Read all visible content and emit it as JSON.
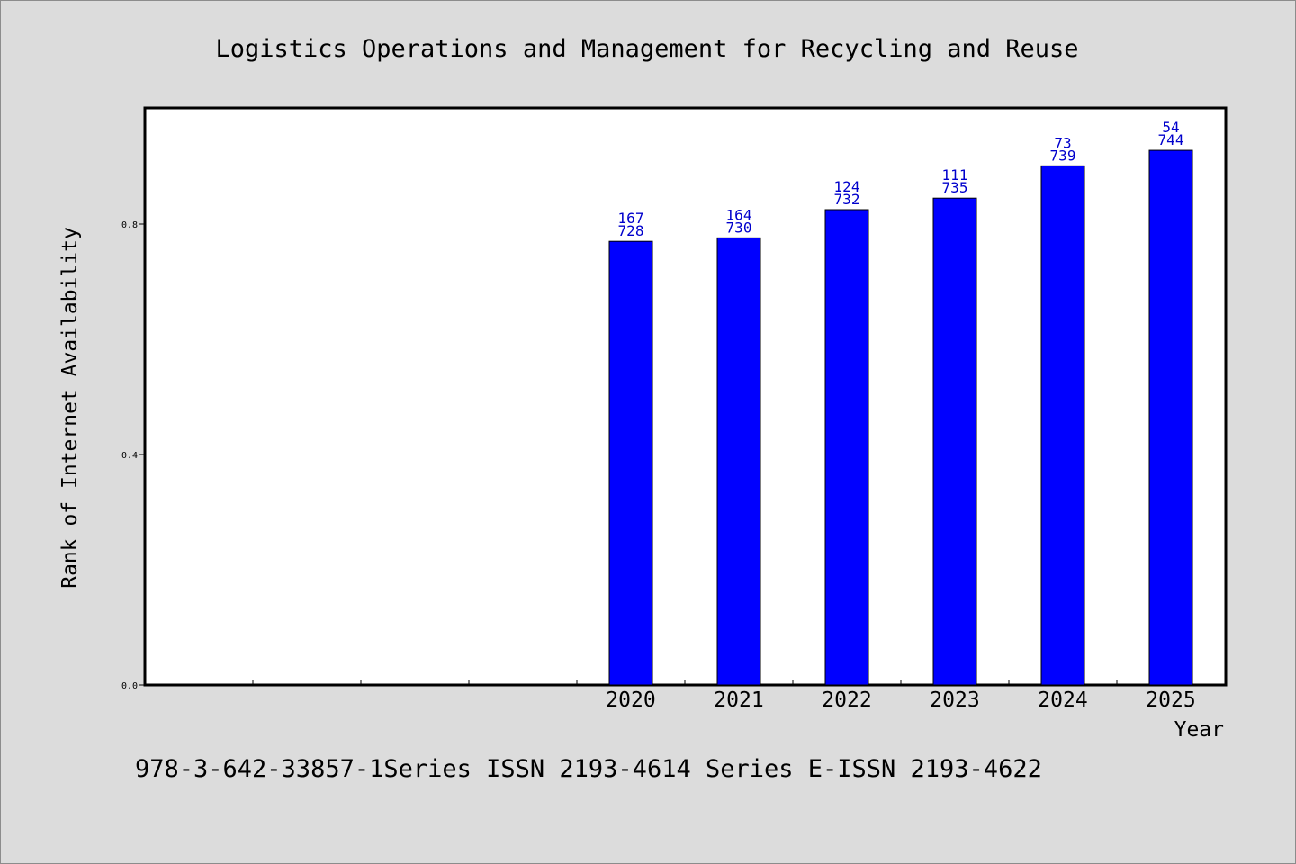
{
  "chart_data": {
    "type": "bar",
    "title": "Logistics Operations and Management for Recycling and Reuse",
    "xlabel": "Year",
    "ylabel": "Rank of Internet Availability",
    "footer": "978-3-642-33857-1Series ISSN 2193-4614 Series E-ISSN 2193-4622",
    "categories": [
      "2020",
      "2021",
      "2022",
      "2023",
      "2024",
      "2025"
    ],
    "values": [
      0.77,
      0.776,
      0.825,
      0.845,
      0.901,
      0.928
    ],
    "labels_top": [
      "167",
      "164",
      "124",
      "111",
      "73",
      "54"
    ],
    "labels_bottom": [
      "728",
      "730",
      "732",
      "735",
      "739",
      "744"
    ],
    "yticks": [
      "0.0",
      "0.4",
      "0.8"
    ],
    "ylim": [
      0,
      1.0
    ],
    "grid": false,
    "colors": {
      "bar": "#0000ff",
      "label": "#0000cc",
      "background": "#dcdcdc",
      "plot": "#ffffff"
    }
  }
}
